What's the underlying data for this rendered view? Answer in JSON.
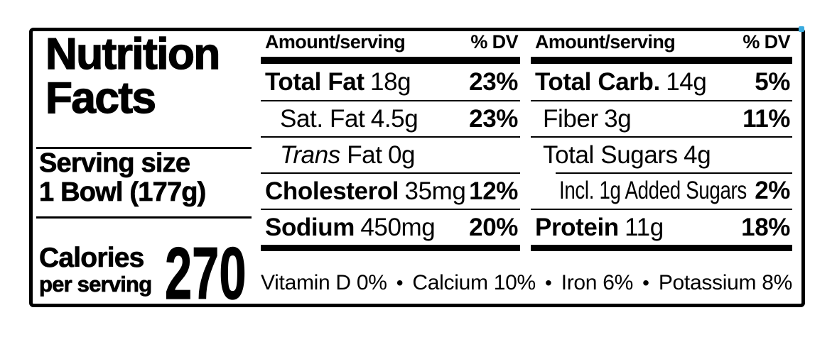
{
  "panel": {
    "title_line1": "Nutrition",
    "title_line2": "Facts",
    "serving_size_label": "Serving size",
    "serving_size_value": "1 Bowl (177g)",
    "calories_label_line1": "Calories",
    "calories_label_line2": "per serving",
    "calories_value": "270"
  },
  "columns": [
    {
      "header": {
        "amount": "Amount/serving",
        "dv": "% DV"
      },
      "rows": [
        {
          "name": "Total Fat",
          "amount": "18g",
          "dv": "23%"
        },
        {
          "name": "Sat. Fat",
          "amount": "4.5g",
          "dv": "23%"
        },
        {
          "name": "Trans",
          "name_rest": " Fat",
          "amount": "0g",
          "dv": ""
        },
        {
          "name": "Cholesterol",
          "amount": "35mg",
          "dv": "12%"
        },
        {
          "name": "Sodium",
          "amount": "450mg",
          "dv": "20%"
        }
      ]
    },
    {
      "header": {
        "amount": "Amount/serving",
        "dv": "% DV"
      },
      "rows": [
        {
          "name": "Total Carb.",
          "amount": "14g",
          "dv": "5%"
        },
        {
          "name": "Fiber",
          "amount": "3g",
          "dv": "11%"
        },
        {
          "name": "Total Sugars",
          "amount": "4g",
          "dv": ""
        },
        {
          "name": "Incl. 1g Added Sugars",
          "amount": "",
          "dv": "2%"
        },
        {
          "name": "Protein",
          "amount": "11g",
          "dv": "18%"
        }
      ]
    }
  ],
  "footer": {
    "separator": "•",
    "items": [
      "Vitamin D 0%",
      "Calcium 10%",
      "Iron 6%",
      "Potassium 8%"
    ]
  },
  "colors": {
    "ink": "#000000",
    "paper": "#ffffff",
    "corner_dot": "#3aabdf"
  }
}
